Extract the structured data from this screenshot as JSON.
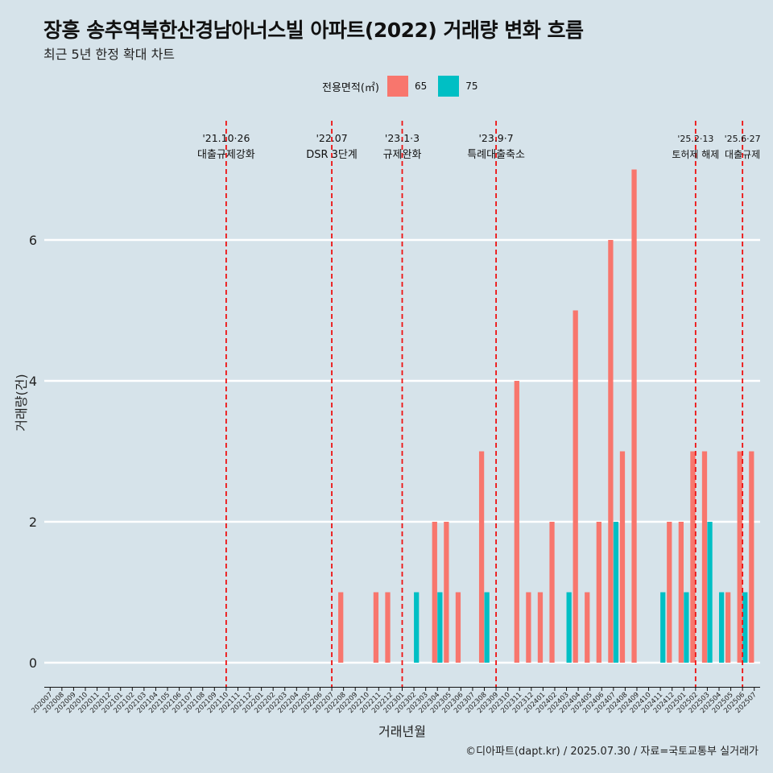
{
  "header": {
    "title": "장흥 송추역북한산경남아너스빌 아파트(2022) 거래량 변화 흐름",
    "subtitle": "최근 5년 한정 확대 차트"
  },
  "legend": {
    "title": "전용면적(㎡)",
    "items": [
      {
        "label": "65",
        "color": "#f8766d"
      },
      {
        "label": "75",
        "color": "#00bfc4"
      }
    ]
  },
  "caption": "©디아파트(dapt.kr) / 2025.07.30 / 자료=국토교통부 실거래가",
  "chart_data": {
    "type": "bar",
    "xlabel": "거래년월",
    "ylabel": "거래량(건)",
    "ylim": [
      0,
      7.4
    ],
    "yticks": [
      0,
      2,
      4,
      6
    ],
    "grid": true,
    "legend_position": "top",
    "categories": [
      "202007",
      "202008",
      "202009",
      "202010",
      "202011",
      "202012",
      "202101",
      "202102",
      "202103",
      "202104",
      "202105",
      "202106",
      "202107",
      "202108",
      "202109",
      "202110",
      "202111",
      "202112",
      "202201",
      "202202",
      "202203",
      "202204",
      "202205",
      "202206",
      "202207",
      "202208",
      "202209",
      "202210",
      "202211",
      "202212",
      "202301",
      "202302",
      "202303",
      "202304",
      "202305",
      "202306",
      "202307",
      "202308",
      "202309",
      "202310",
      "202311",
      "202312",
      "202401",
      "202402",
      "202403",
      "202404",
      "202405",
      "202406",
      "202407",
      "202408",
      "202409",
      "202410",
      "202411",
      "202412",
      "202501",
      "202502",
      "202503",
      "202504",
      "202505",
      "202506",
      "202507"
    ],
    "series": [
      {
        "name": "65",
        "color": "#f8766d",
        "values": [
          0,
          0,
          0,
          0,
          0,
          0,
          0,
          0,
          0,
          0,
          0,
          0,
          0,
          0,
          0,
          0,
          0,
          0,
          0,
          0,
          0,
          0,
          0,
          0,
          0,
          1,
          0,
          0,
          1,
          1,
          0,
          0,
          0,
          2,
          2,
          1,
          0,
          3,
          0,
          0,
          4,
          1,
          1,
          2,
          0,
          5,
          1,
          2,
          6,
          3,
          7,
          0,
          0,
          2,
          2,
          3,
          3,
          0,
          1,
          3,
          3
        ]
      },
      {
        "name": "75",
        "color": "#00bfc4",
        "values": [
          0,
          0,
          0,
          0,
          0,
          0,
          0,
          0,
          0,
          0,
          0,
          0,
          0,
          0,
          0,
          0,
          0,
          0,
          0,
          0,
          0,
          0,
          0,
          0,
          0,
          0,
          0,
          0,
          0,
          0,
          0,
          1,
          0,
          1,
          0,
          0,
          0,
          1,
          0,
          0,
          0,
          0,
          0,
          0,
          1,
          0,
          0,
          0,
          2,
          0,
          0,
          0,
          1,
          0,
          1,
          0,
          2,
          1,
          0,
          1,
          0
        ]
      }
    ],
    "events": [
      {
        "month": "202110",
        "date": "'21.10·26",
        "label": "대출규제강화"
      },
      {
        "month": "202207",
        "date": "'22.07",
        "label": "DSR 3단계"
      },
      {
        "month": "202301",
        "date": "'23.1·3",
        "label": "규제완화"
      },
      {
        "month": "202309",
        "date": "'23.9·7",
        "label": "특례대출축소"
      },
      {
        "month": "202502",
        "date": "'25.2·13",
        "label": "토허제 해제"
      },
      {
        "month": "202506",
        "date": "'25.6·27",
        "label": "대출규제"
      }
    ]
  }
}
